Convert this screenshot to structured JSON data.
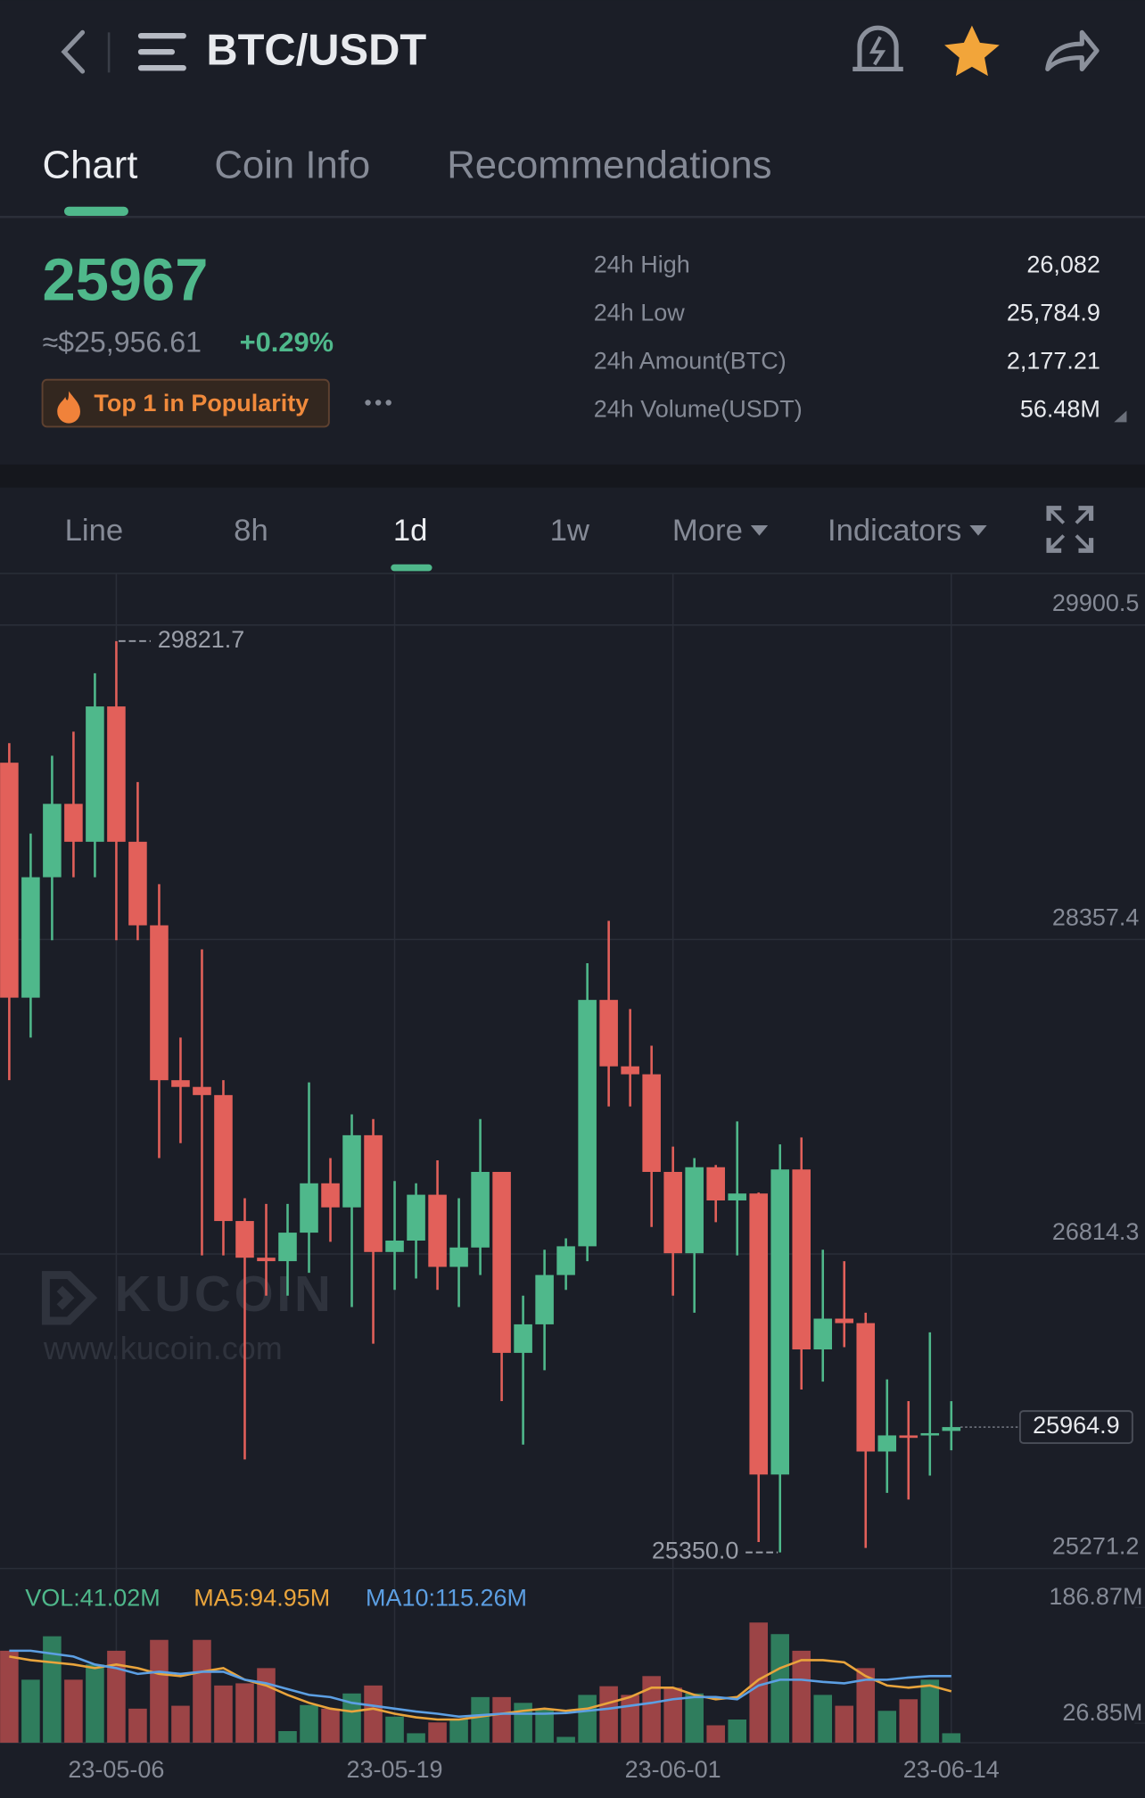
{
  "header": {
    "title": "BTC/USDT"
  },
  "tabs": [
    "Chart",
    "Coin Info",
    "Recommendations"
  ],
  "ticker": {
    "price": "25967",
    "fiat": "≈$25,956.61",
    "change": "+0.29%",
    "badge": "Top 1 in Popularity"
  },
  "stats": [
    {
      "label": "24h High",
      "value": "26,082"
    },
    {
      "label": "24h Low",
      "value": "25,784.9"
    },
    {
      "label": "24h Amount(BTC)",
      "value": "2,177.21"
    },
    {
      "label": "24h Volume(USDT)",
      "value": "56.48M"
    }
  ],
  "intervals": [
    "Line",
    "8h",
    "1d",
    "1w",
    "More",
    "Indicators"
  ],
  "watermark": {
    "brand": "KUCOIN",
    "url": "www.kucoin.com"
  },
  "chart_data": {
    "type": "candlestick",
    "categories": [
      null,
      null,
      null,
      null,
      null,
      "23-05-06",
      null,
      null,
      null,
      null,
      null,
      null,
      null,
      null,
      null,
      null,
      null,
      null,
      "23-05-19",
      null,
      null,
      null,
      null,
      null,
      null,
      null,
      null,
      null,
      null,
      null,
      null,
      "23-06-01",
      null,
      null,
      null,
      null,
      null,
      null,
      null,
      null,
      null,
      null,
      null,
      null,
      "23-06-14"
    ],
    "open": [
      29225,
      28072,
      28663,
      29023,
      28837,
      29501,
      28837,
      28427,
      27667,
      27634,
      27594,
      26976,
      26796,
      26779,
      26919,
      27161,
      27043,
      27397,
      26824,
      26880,
      27105,
      26751,
      26846,
      27217,
      26329,
      26469,
      26711,
      26852,
      28061,
      27735,
      27696,
      27217,
      26818,
      27240,
      27077,
      27111,
      25732,
      27229,
      26346,
      26497,
      26475,
      25845,
      25924,
      25924,
      25946
    ],
    "high": [
      29321,
      28877,
      29259,
      29377,
      29664,
      29821.7,
      29130,
      28629,
      27876,
      28309,
      27667,
      27088,
      27060,
      27060,
      27656,
      27285,
      27499,
      27476,
      27172,
      27161,
      27274,
      27088,
      27476,
      27217,
      26610,
      26835,
      26891,
      28241,
      28449,
      28016,
      27836,
      27341,
      27285,
      27251,
      27465,
      27116,
      27352,
      27386,
      26835,
      26779,
      26526,
      26199,
      26092,
      26430,
      26092
    ],
    "low": [
      27667,
      27876,
      28354,
      28663,
      28663,
      28354,
      28354,
      27285,
      27358,
      26807,
      26807,
      25806,
      26610,
      26610,
      26722,
      26874,
      26554,
      26374,
      26638,
      26694,
      26638,
      26554,
      26711,
      26092,
      25879,
      26244,
      26638,
      26779,
      27538,
      27538,
      26947,
      26610,
      26526,
      26970,
      26807,
      25401,
      25350,
      26149,
      26188,
      26357,
      25372,
      25642,
      25609,
      25727,
      25851
    ],
    "close": [
      28072,
      28663,
      29023,
      28837,
      29501,
      28837,
      28427,
      27667,
      27634,
      27594,
      26976,
      26796,
      26779,
      26919,
      27161,
      27043,
      27397,
      26824,
      26880,
      27105,
      26751,
      26846,
      27217,
      26329,
      26469,
      26711,
      26852,
      28061,
      27735,
      27696,
      27217,
      26818,
      27240,
      27077,
      27111,
      25732,
      27229,
      26346,
      26497,
      26475,
      25845,
      25924,
      25912,
      25935,
      25964.9
    ],
    "up_color": "#4fb88b",
    "down_color": "#e2605a",
    "ylim": [
      25271.2,
      29900.5
    ],
    "yticks": [
      29900.5,
      28357.4,
      26814.3,
      25271.2
    ],
    "grid": true,
    "annotations": {
      "high": "29821.7",
      "low": "25350.0",
      "last": "25964.9"
    },
    "volume": {
      "legend": [
        "VOL:41.02M",
        "MA5:94.95M",
        "MA10:115.26M"
      ],
      "ylim": [
        0,
        186.87
      ],
      "yticks": [
        {
          "value": 186.87,
          "label": "186.87M"
        },
        {
          "value": 26.85,
          "label": "26.85M"
        }
      ],
      "up_color": "#2f7d5d",
      "down_color": "#9c4446",
      "values": [
        127,
        87,
        147,
        87,
        108,
        127,
        47,
        142,
        51,
        142,
        79,
        82,
        103,
        16,
        52,
        47,
        68,
        79,
        36,
        13,
        28,
        32,
        63,
        63,
        55,
        47,
        8,
        66,
        78,
        66,
        92,
        76,
        68,
        24,
        32,
        166,
        150,
        127,
        66,
        51,
        103,
        44,
        60,
        87,
        13
      ],
      "series": [
        {
          "name": "MA5",
          "color": "#e9a43c",
          "values": [
            119,
            114,
            111,
            108,
            103,
            108,
            103,
            95,
            92,
            98,
            103,
            87,
            79,
            66,
            55,
            47,
            43,
            47,
            40,
            35,
            32,
            32,
            36,
            40,
            44,
            47,
            44,
            47,
            55,
            63,
            76,
            76,
            66,
            60,
            63,
            87,
            103,
            114,
            114,
            111,
            92,
            79,
            76,
            79,
            71
          ]
        },
        {
          "name": "MA10",
          "color": "#5c9fe3",
          "values": [
            127,
            127,
            123,
            119,
            108,
            103,
            95,
            98,
            95,
            98,
            98,
            87,
            82,
            74,
            66,
            63,
            55,
            51,
            47,
            43,
            40,
            36,
            38,
            40,
            40,
            40,
            41,
            44,
            47,
            51,
            55,
            60,
            63,
            63,
            60,
            79,
            87,
            87,
            84,
            82,
            87,
            87,
            90,
            92,
            92
          ]
        }
      ]
    }
  }
}
